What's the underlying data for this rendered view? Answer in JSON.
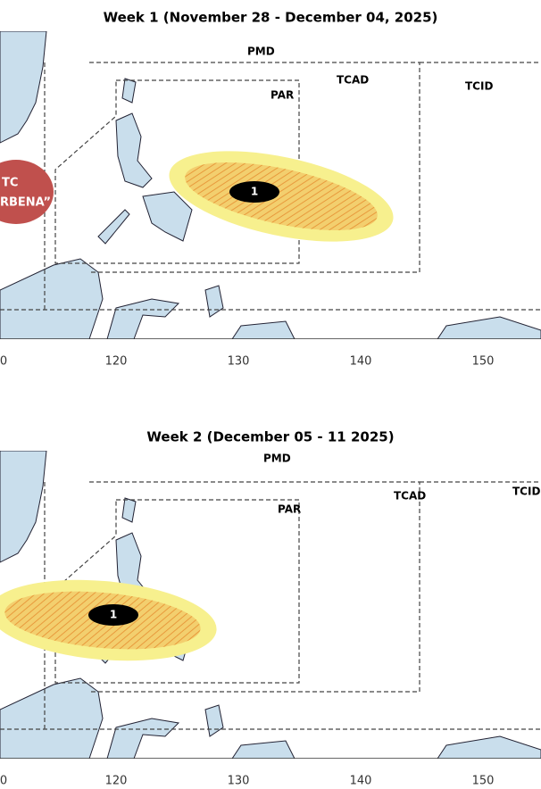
{
  "panels": [
    {
      "title": "Week 1 (November 28 - December 04, 2025)",
      "regions": [
        "PMD",
        "PAR",
        "TCAD",
        "TCID"
      ],
      "x_axis": [
        "0",
        "120",
        "130",
        "140",
        "150"
      ],
      "tc_label": [
        "TC",
        "RBENA”"
      ],
      "outlook_label": "1"
    },
    {
      "title": "Week 2 (December 05 - 11 2025)",
      "regions": [
        "PMD",
        "PAR",
        "TCAD",
        "TCID"
      ],
      "x_axis": [
        "0",
        "120",
        "130",
        "140",
        "150"
      ],
      "outlook_label": "1"
    }
  ]
}
